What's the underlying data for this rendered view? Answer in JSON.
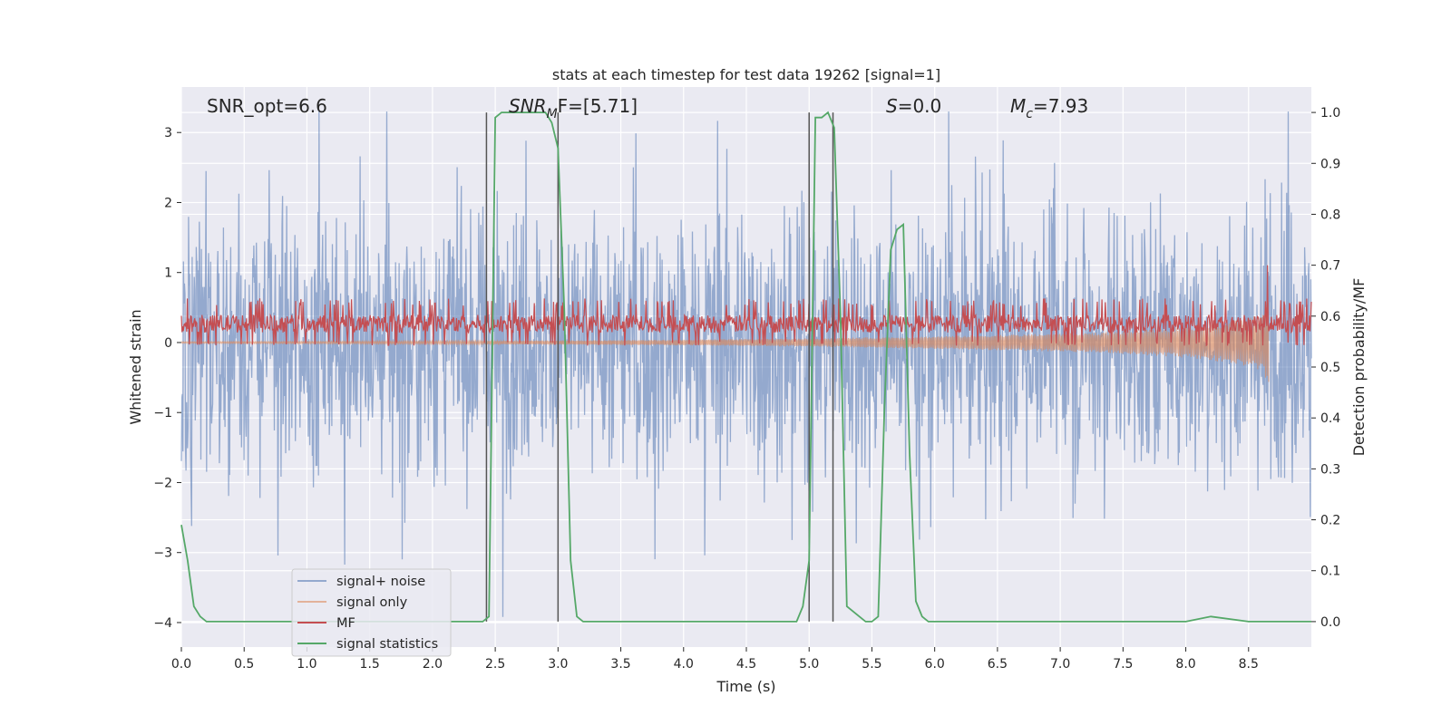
{
  "chart_data": {
    "type": "line",
    "title": "stats at each timestep for test data 19262 [signal=1]",
    "xlabel": "Time (s)",
    "ylabel_left": "Whitened strain",
    "ylabel_right": "Detection probability/MF",
    "xlim": [
      0,
      9.0
    ],
    "ylim_left": [
      -4.35,
      3.65
    ],
    "ylim_right": [
      -0.05,
      1.05
    ],
    "xticks": [
      "0.0",
      "0.5",
      "1.0",
      "1.5",
      "2.0",
      "2.5",
      "3.0",
      "3.5",
      "4.0",
      "4.5",
      "5.0",
      "5.5",
      "6.0",
      "6.5",
      "7.0",
      "7.5",
      "8.0",
      "8.5"
    ],
    "yticks_left": [
      "3",
      "2",
      "1",
      "0",
      "−1",
      "−2",
      "−3",
      "−4"
    ],
    "yticks_right": [
      "1.0",
      "0.9",
      "0.8",
      "0.7",
      "0.6",
      "0.5",
      "0.4",
      "0.3",
      "0.2",
      "0.1",
      "0.0"
    ],
    "grid": true,
    "legend_position": "lower-left",
    "annotations": {
      "snr_opt": "SNR_opt=6.6",
      "snr_mf_main": "SNR",
      "snr_mf_sub": "M",
      "snr_mf_rest": "F=[5.71]",
      "s_main": "S",
      "s_rest": "=0.0",
      "mc_main": "M",
      "mc_sub": "c",
      "mc_rest": "=7.93"
    },
    "series": [
      {
        "name": "signal+ noise",
        "axis": "left",
        "color": "#4c72b0",
        "description_range": [
          -4.0,
          3.3
        ],
        "envelope_typical": [
          -1.9,
          1.9
        ]
      },
      {
        "name": "signal only",
        "axis": "left",
        "color": "#dd8452",
        "x": [
          0.0,
          2.0,
          4.0,
          5.0,
          6.0,
          7.0,
          7.5,
          8.0,
          8.3,
          8.6,
          8.66
        ],
        "amplitude": [
          0.01,
          0.02,
          0.04,
          0.06,
          0.09,
          0.13,
          0.16,
          0.22,
          0.28,
          0.4,
          0.6
        ]
      },
      {
        "name": "MF",
        "axis": "right",
        "color": "#c44e52",
        "band": [
          0.55,
          0.62
        ],
        "peak": {
          "x": 8.65,
          "y": 0.7
        }
      },
      {
        "name": "signal statistics",
        "axis": "right",
        "color": "#55a868",
        "x": [
          0.0,
          0.05,
          0.1,
          0.15,
          0.2,
          0.3,
          0.5,
          1.0,
          1.5,
          2.0,
          2.3,
          2.4,
          2.45,
          2.5,
          2.55,
          2.6,
          2.7,
          2.8,
          2.9,
          2.95,
          3.0,
          3.05,
          3.1,
          3.15,
          3.2,
          3.4,
          4.0,
          4.5,
          4.8,
          4.9,
          4.95,
          5.0,
          5.05,
          5.1,
          5.15,
          5.2,
          5.25,
          5.3,
          5.4,
          5.45,
          5.5,
          5.55,
          5.6,
          5.65,
          5.7,
          5.75,
          5.8,
          5.85,
          5.9,
          5.95,
          6.0,
          6.5,
          7.0,
          7.5,
          8.0,
          8.2,
          8.5,
          9.0
        ],
        "y": [
          0.19,
          0.12,
          0.03,
          0.01,
          0.0,
          0.0,
          0.0,
          0.0,
          0.0,
          0.0,
          0.0,
          0.0,
          0.01,
          0.99,
          1.0,
          1.0,
          1.0,
          1.0,
          1.0,
          0.98,
          0.93,
          0.61,
          0.12,
          0.01,
          0.0,
          0.0,
          0.0,
          0.0,
          0.0,
          0.0,
          0.03,
          0.12,
          0.99,
          0.99,
          1.0,
          0.97,
          0.6,
          0.03,
          0.01,
          0.0,
          0.0,
          0.01,
          0.42,
          0.73,
          0.77,
          0.78,
          0.33,
          0.04,
          0.01,
          0.0,
          0.0,
          0.0,
          0.0,
          0.0,
          0.0,
          0.01,
          0.0,
          0.0
        ]
      }
    ],
    "vertical_lines": [
      2.43,
      3.0,
      5.0,
      5.19
    ]
  }
}
